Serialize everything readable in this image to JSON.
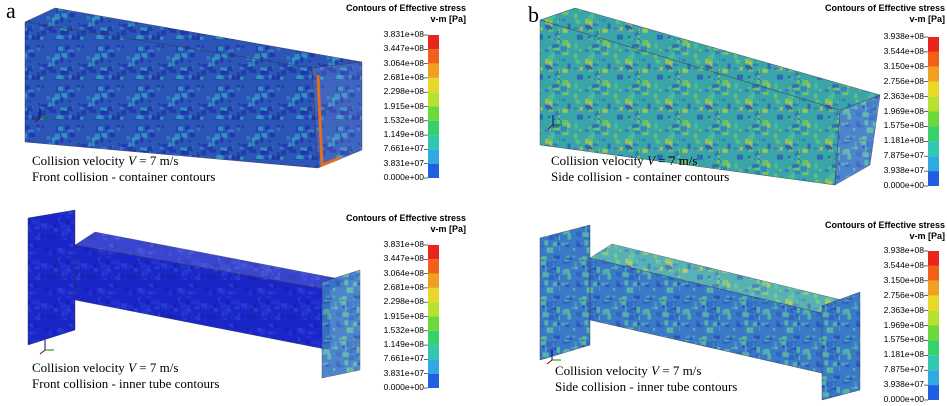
{
  "labels": [
    "a",
    "b"
  ],
  "panels": [
    {
      "legend": {
        "title": "Contours of Effective stress",
        "unit": "v-m [Pa]",
        "ticks": [
          "3.831e+08",
          "3.447e+08",
          "3.064e+08",
          "2.681e+08",
          "2.298e+08",
          "1.915e+08",
          "1.532e+08",
          "1.149e+08",
          "7.661e+07",
          "3.831e+07",
          "0.000e+00"
        ]
      },
      "caption": {
        "prefix": "Collision velocity",
        "variable": "V",
        "suffix": "= 7 m/s",
        "line2": "Front collision - container contours"
      }
    },
    {
      "legend": {
        "title": "Contours of Effective stress",
        "unit": "v-m [Pa]",
        "ticks": [
          "3.938e+08",
          "3.544e+08",
          "3.150e+08",
          "2.756e+08",
          "2.363e+08",
          "1.969e+08",
          "1.575e+08",
          "1.181e+08",
          "7.875e+07",
          "3.938e+07",
          "0.000e+00"
        ]
      },
      "caption": {
        "prefix": "Collision velocity",
        "variable": "V",
        "suffix": "= 7 m/s",
        "line2": "Side collision - container contours"
      }
    },
    {
      "legend": {
        "title": "Contours of Effective stress",
        "unit": "v-m [Pa]",
        "ticks": [
          "3.831e+08",
          "3.447e+08",
          "3.064e+08",
          "2.681e+08",
          "2.298e+08",
          "1.915e+08",
          "1.532e+08",
          "1.149e+08",
          "7.661e+07",
          "3.831e+07",
          "0.000e+00"
        ]
      },
      "caption": {
        "prefix": "Collision velocity",
        "variable": "V",
        "suffix": "= 7 m/s",
        "line2": "Front collision - inner tube contours"
      }
    },
    {
      "legend": {
        "title": "Contours of Effective stress",
        "unit": "v-m [Pa]",
        "ticks": [
          "3.938e+08",
          "3.544e+08",
          "3.150e+08",
          "2.756e+08",
          "2.363e+08",
          "1.969e+08",
          "1.575e+08",
          "1.181e+08",
          "7.875e+07",
          "3.938e+07",
          "0.000e+00"
        ]
      },
      "caption": {
        "prefix": "Collision velocity",
        "variable": "V",
        "suffix": "= 7 m/s",
        "line2": "Side collision - inner tube contours"
      }
    }
  ]
}
